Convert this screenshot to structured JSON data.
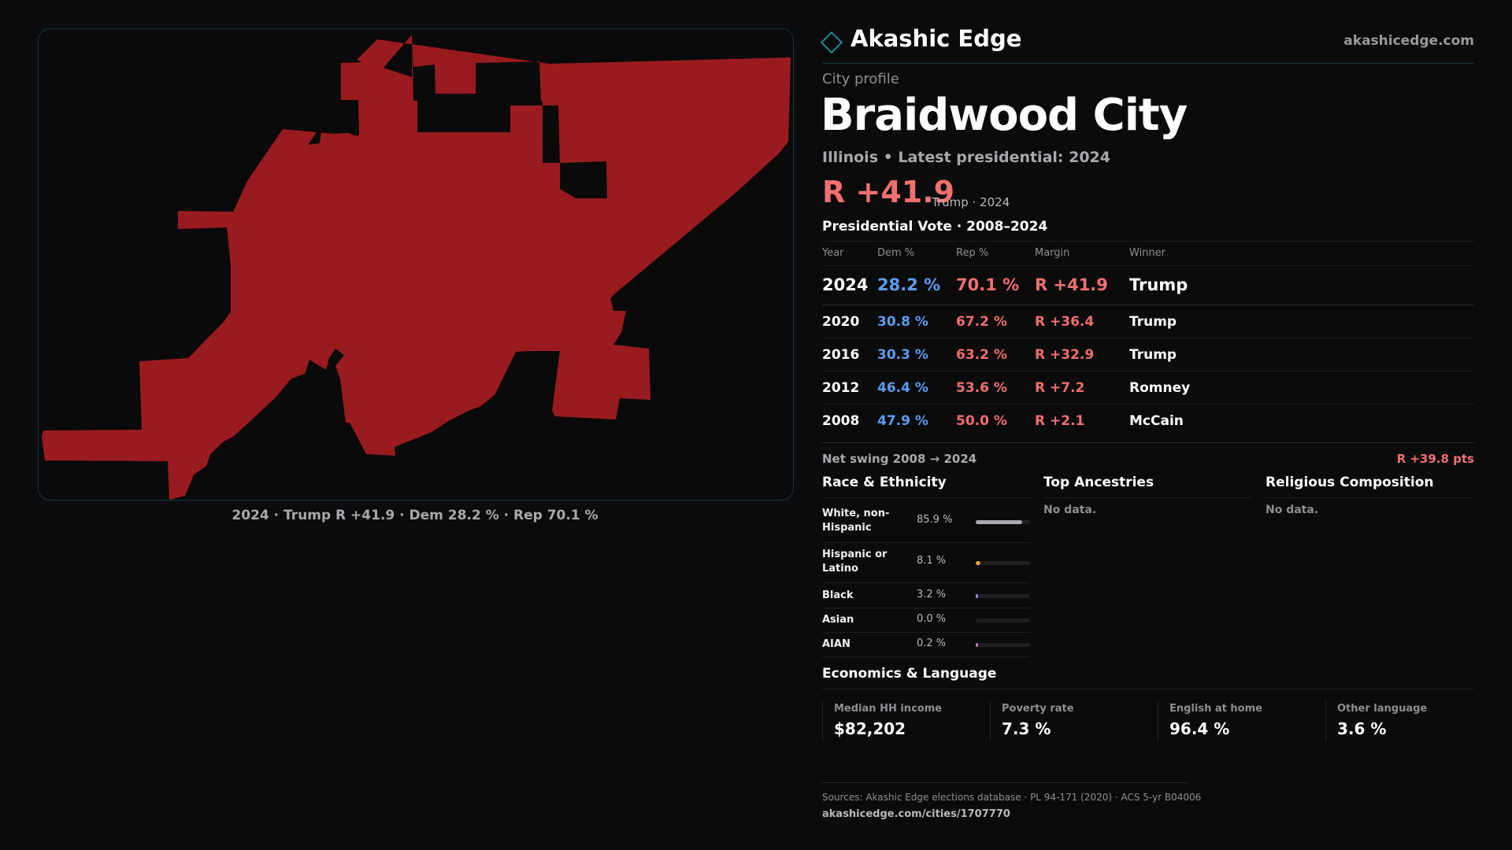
{
  "brand": {
    "name": "Akashic Edge",
    "url": "akashicedge.com"
  },
  "profile": {
    "kind": "City profile",
    "city": "Braidwood City",
    "state_line": "Illinois • Latest presidential: 2024",
    "margin": "R +41.9",
    "margin_note": "Trump · 2024"
  },
  "map": {
    "fill_color": "#9a1b1f",
    "caption": "2024 · Trump R +41.9 · Dem 28.2 % · Rep 70.1 %"
  },
  "vote_table": {
    "title": "Presidential Vote · 2008–2024",
    "columns": [
      "Year",
      "Dem %",
      "Rep %",
      "Margin",
      "Winner"
    ],
    "rows": [
      {
        "year": "2024",
        "dem": "28.2 %",
        "rep": "70.1 %",
        "margin": "R +41.9",
        "winner": "Trump"
      },
      {
        "year": "2020",
        "dem": "30.8 %",
        "rep": "67.2 %",
        "margin": "R +36.4",
        "winner": "Trump"
      },
      {
        "year": "2016",
        "dem": "30.3 %",
        "rep": "63.2 %",
        "margin": "R +32.9",
        "winner": "Trump"
      },
      {
        "year": "2012",
        "dem": "46.4 %",
        "rep": "53.6 %",
        "margin": "R +7.2",
        "winner": "Romney"
      },
      {
        "year": "2008",
        "dem": "47.9 %",
        "rep": "50.0 %",
        "margin": "R +2.1",
        "winner": "McCain"
      }
    ],
    "swing_label": "Net swing 2008 → 2024",
    "swing_value": "R +39.8 pts"
  },
  "race": {
    "title": "Race & Ethnicity",
    "rows": [
      {
        "label": "White, non-Hispanic",
        "pct": "85.9 %",
        "value": 85.9,
        "color": "#a9a9b4"
      },
      {
        "label": "Hispanic or Latino",
        "pct": "8.1 %",
        "value": 8.1,
        "color": "#e7a33a"
      },
      {
        "label": "Black",
        "pct": "3.2 %",
        "value": 3.2,
        "color": "#8f86e8"
      },
      {
        "label": "Asian",
        "pct": "0.0 %",
        "value": 0.0,
        "color": "#4fb3a8"
      },
      {
        "label": "AIAN",
        "pct": "0.2 %",
        "value": 0.2,
        "color": "#c76fb0"
      }
    ]
  },
  "ancestries": {
    "title": "Top Ancestries",
    "empty": "No data."
  },
  "religion": {
    "title": "Religious Composition",
    "empty": "No data."
  },
  "economics": {
    "title": "Economics & Language",
    "cards": [
      {
        "label": "Median HH income",
        "value": "$82,202"
      },
      {
        "label": "Poverty rate",
        "value": "7.3 %"
      },
      {
        "label": "English at home",
        "value": "96.4 %"
      },
      {
        "label": "Other language",
        "value": "3.6 %"
      }
    ]
  },
  "footer": {
    "sources": "Sources: Akashic Edge elections database · PL 94-171 (2020) · ACS 5-yr B04006",
    "url": "akashicedge.com/cities/1707770"
  }
}
